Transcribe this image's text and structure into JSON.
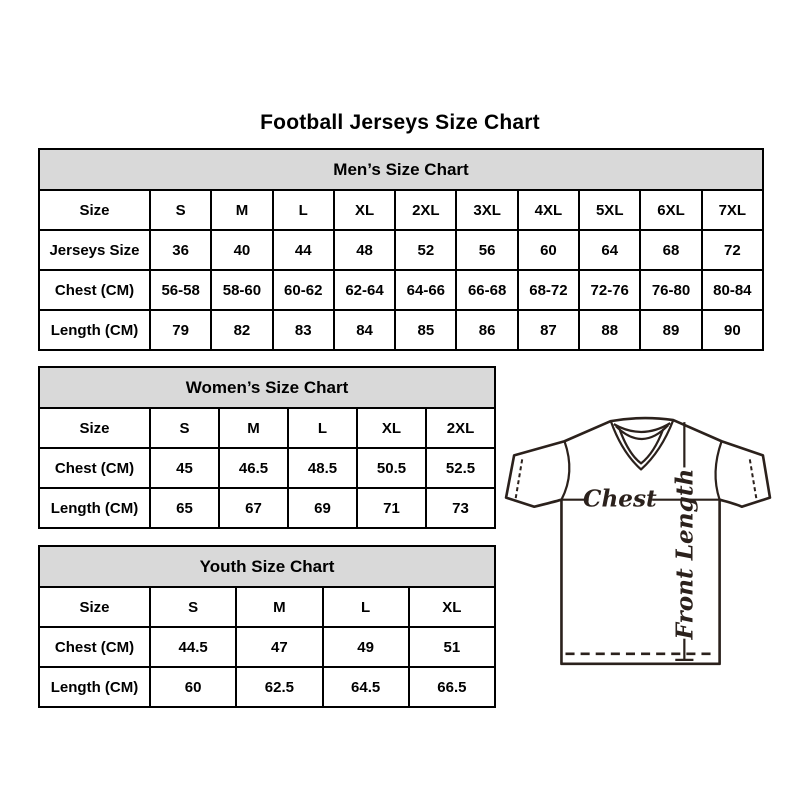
{
  "page_title": "Football Jerseys Size Chart",
  "colors": {
    "header_bg": "#d9d9d9",
    "border": "#000000",
    "diagram_stroke": "#2b211c"
  },
  "diagram": {
    "chest_label": "Chest",
    "front_length_label": "Front Length"
  },
  "chart_data": [
    {
      "type": "table",
      "title": "Men’s Size Chart",
      "columns": [
        "Size",
        "S",
        "M",
        "L",
        "XL",
        "2XL",
        "3XL",
        "4XL",
        "5XL",
        "6XL",
        "7XL"
      ],
      "rows": [
        [
          "Jerseys Size",
          "36",
          "40",
          "44",
          "48",
          "52",
          "56",
          "60",
          "64",
          "68",
          "72"
        ],
        [
          "Chest (CM)",
          "56-58",
          "58-60",
          "60-62",
          "62-64",
          "64-66",
          "66-68",
          "68-72",
          "72-76",
          "76-80",
          "80-84"
        ],
        [
          "Length (CM)",
          "79",
          "82",
          "83",
          "84",
          "85",
          "86",
          "87",
          "88",
          "89",
          "90"
        ]
      ]
    },
    {
      "type": "table",
      "title": "Women’s Size Chart",
      "columns": [
        "Size",
        "S",
        "M",
        "L",
        "XL",
        "2XL"
      ],
      "rows": [
        [
          "Chest (CM)",
          "45",
          "46.5",
          "48.5",
          "50.5",
          "52.5"
        ],
        [
          "Length (CM)",
          "65",
          "67",
          "69",
          "71",
          "73"
        ]
      ]
    },
    {
      "type": "table",
      "title": "Youth Size Chart",
      "columns": [
        "Size",
        "S",
        "M",
        "L",
        "XL"
      ],
      "rows": [
        [
          "Chest (CM)",
          "44.5",
          "47",
          "49",
          "51"
        ],
        [
          "Length (CM)",
          "60",
          "62.5",
          "64.5",
          "66.5"
        ]
      ]
    }
  ]
}
